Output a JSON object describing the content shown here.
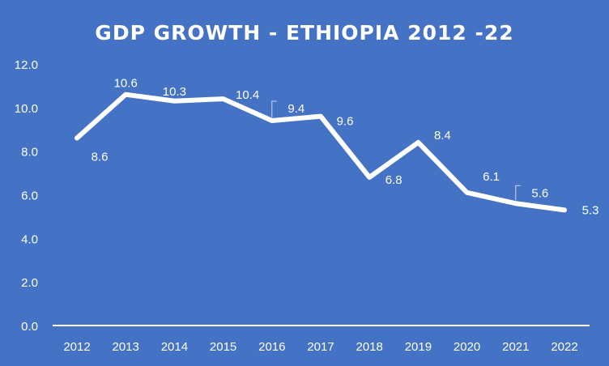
{
  "chart_data": {
    "type": "line",
    "title": "GDP GROWTH - ETHIOPIA 2012  -22",
    "xlabel": "",
    "ylabel": "",
    "categories": [
      "2012",
      "2013",
      "2014",
      "2015",
      "2016",
      "2017",
      "2018",
      "2019",
      "2020",
      "2021",
      "2022"
    ],
    "series": [
      {
        "name": "GDP growth",
        "values": [
          8.6,
          10.6,
          10.3,
          10.4,
          9.4,
          9.6,
          6.8,
          8.4,
          6.1,
          5.6,
          5.3
        ]
      }
    ],
    "data_labels": [
      "8.6",
      "10.6",
      "10.3",
      "10.4",
      "9.4",
      "9.6",
      "6.8",
      "8.4",
      "6.1",
      "5.6",
      "5.3"
    ],
    "ylim": [
      0,
      12
    ],
    "yticks": [
      "0.0",
      "2.0",
      "4.0",
      "6.0",
      "8.0",
      "10.0",
      "12.0"
    ],
    "grid": false,
    "drop_lines": true,
    "legend": "none",
    "colors": {
      "background": "#4472C4",
      "line": "#FFFFFF",
      "text": "#FFFFFF"
    }
  }
}
